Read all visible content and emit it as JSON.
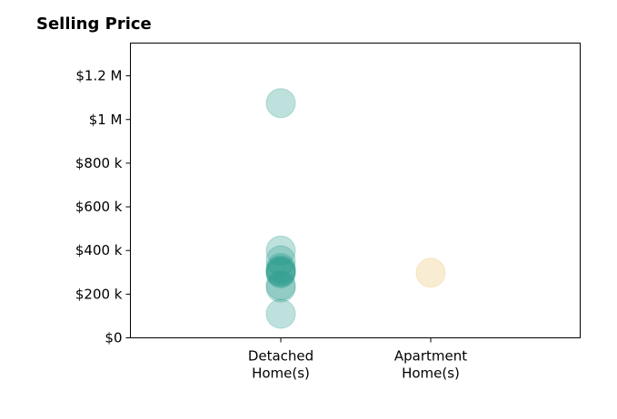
{
  "chart_data": {
    "type": "scatter",
    "title": "Selling Price",
    "xlabel": "",
    "ylabel": "",
    "categories": [
      "Detached\nHome(s)",
      "Apartment\nHome(s)"
    ],
    "ylim": [
      0,
      1350000
    ],
    "yticks": [
      0,
      200000,
      400000,
      600000,
      800000,
      1000000,
      1200000
    ],
    "ytick_labels": [
      "$0",
      "$200 k",
      "$400 k",
      "$600 k",
      "$800 k",
      "$1 M",
      "$1.2 M"
    ],
    "grid": false,
    "series": [
      {
        "category": "Detached\nHome(s)",
        "color": "#2a9d8f",
        "values": [
          1075000,
          400000,
          355000,
          320000,
          310000,
          305000,
          300000,
          295000,
          240000,
          230000,
          110000
        ]
      },
      {
        "category": "Apartment\nHome(s)",
        "color": "#e9c46a",
        "values": [
          298000
        ]
      }
    ]
  }
}
